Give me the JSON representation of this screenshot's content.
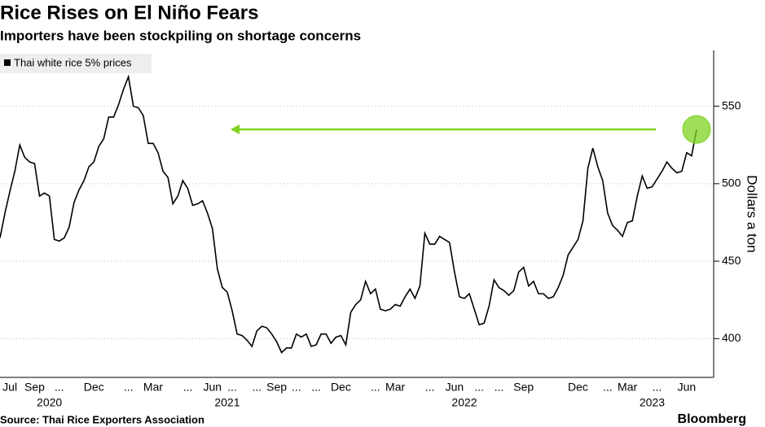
{
  "chart_data": {
    "type": "line",
    "title": "Rice Rises on El Niño Fears",
    "subtitle": "Importers have been stockpiling on shortage concerns",
    "y_axis_label": "Dollars a ton",
    "source": "Source: Thai Rice Exporters Association",
    "brand": "Bloomberg",
    "legend": "top-left",
    "grid": true,
    "ylim": [
      375,
      586
    ],
    "yticks": [
      400,
      450,
      500,
      550
    ],
    "categories": [
      null,
      null,
      "Jul",
      null,
      null,
      null,
      null,
      "Sep",
      null,
      null,
      null,
      null,
      "...",
      null,
      null,
      null,
      null,
      null,
      null,
      "Dec",
      null,
      null,
      null,
      null,
      null,
      null,
      "...",
      null,
      null,
      null,
      null,
      "Mar",
      null,
      null,
      null,
      null,
      null,
      null,
      "...",
      null,
      null,
      null,
      null,
      "Jun",
      null,
      null,
      null,
      "...",
      null,
      null,
      null,
      null,
      "...",
      null,
      null,
      null,
      "Sep",
      null,
      null,
      null,
      "...",
      null,
      null,
      null,
      "...",
      null,
      null,
      null,
      null,
      "Dec",
      null,
      null,
      null,
      null,
      null,
      null,
      "...",
      null,
      null,
      null,
      "Mar",
      null,
      null,
      null,
      null,
      null,
      null,
      "...",
      null,
      null,
      null,
      null,
      "Jun",
      null,
      null,
      null,
      null,
      "...",
      null,
      null,
      null,
      "...",
      null,
      null,
      null,
      null,
      "Sep",
      null,
      null,
      null,
      null,
      null,
      null,
      null,
      null,
      null,
      null,
      "Dec",
      null,
      null,
      null,
      null,
      null,
      "...",
      null,
      null,
      null,
      "Mar",
      null,
      null,
      null,
      null,
      null,
      "...",
      null,
      null,
      null,
      null,
      null,
      "Jun",
      null,
      null
    ],
    "category_years": [
      null,
      null,
      null,
      null,
      null,
      null,
      null,
      null,
      null,
      null,
      "2020",
      null,
      null,
      null,
      null,
      null,
      null,
      null,
      null,
      null,
      null,
      null,
      null,
      null,
      null,
      null,
      null,
      null,
      null,
      null,
      null,
      null,
      null,
      null,
      null,
      null,
      null,
      null,
      null,
      null,
      null,
      null,
      null,
      null,
      null,
      null,
      "2021",
      null,
      null,
      null,
      null,
      null,
      null,
      null,
      null,
      null,
      null,
      null,
      null,
      null,
      null,
      null,
      null,
      null,
      null,
      null,
      null,
      null,
      null,
      null,
      null,
      null,
      null,
      null,
      null,
      null,
      null,
      null,
      null,
      null,
      null,
      null,
      null,
      null,
      null,
      null,
      null,
      null,
      null,
      null,
      null,
      null,
      null,
      null,
      "2022",
      null,
      null,
      null,
      null,
      null,
      null,
      null,
      null,
      null,
      null,
      null,
      null,
      null,
      null,
      null,
      null,
      null,
      null,
      null,
      null,
      null,
      null,
      null,
      null,
      null,
      null,
      null,
      null,
      null,
      null,
      null,
      null,
      null,
      null,
      null,
      null,
      null,
      "2023",
      null,
      null,
      null,
      null,
      null,
      null,
      null,
      null,
      null
    ],
    "series": [
      {
        "name": "Thai white rice 5% prices",
        "color": "#000000",
        "values": [
          465,
          481,
          495,
          508,
          525,
          517,
          514,
          513,
          492,
          494,
          492,
          464,
          463,
          465,
          472,
          488,
          496,
          502,
          511,
          514,
          524,
          529,
          543,
          543,
          551,
          561,
          569,
          550,
          549,
          544,
          526,
          526,
          520,
          508,
          504,
          487,
          492,
          502,
          497,
          486,
          487,
          489,
          481,
          471,
          445,
          433,
          430,
          418,
          403,
          402,
          399,
          395,
          405,
          408,
          407,
          403,
          398,
          391,
          394,
          394,
          403,
          401,
          403,
          395,
          396,
          403,
          403,
          397,
          401,
          402,
          396,
          417,
          422,
          425,
          437,
          429,
          432,
          419,
          418,
          419,
          422,
          421,
          427,
          432,
          426,
          434,
          468,
          461,
          461,
          466,
          464,
          462,
          443,
          427,
          426,
          429,
          419,
          409,
          410,
          421,
          438,
          433,
          431,
          428,
          431,
          443,
          446,
          434,
          437,
          429,
          429,
          426,
          427,
          433,
          441,
          454,
          459,
          464,
          476,
          510,
          523,
          511,
          502,
          481,
          473,
          470,
          466,
          475,
          476,
          492,
          505,
          497,
          498,
          503,
          508,
          514,
          510,
          507,
          508,
          520,
          518,
          535
        ]
      }
    ],
    "reference_line": {
      "value": 535,
      "color": "#7ed321"
    }
  }
}
